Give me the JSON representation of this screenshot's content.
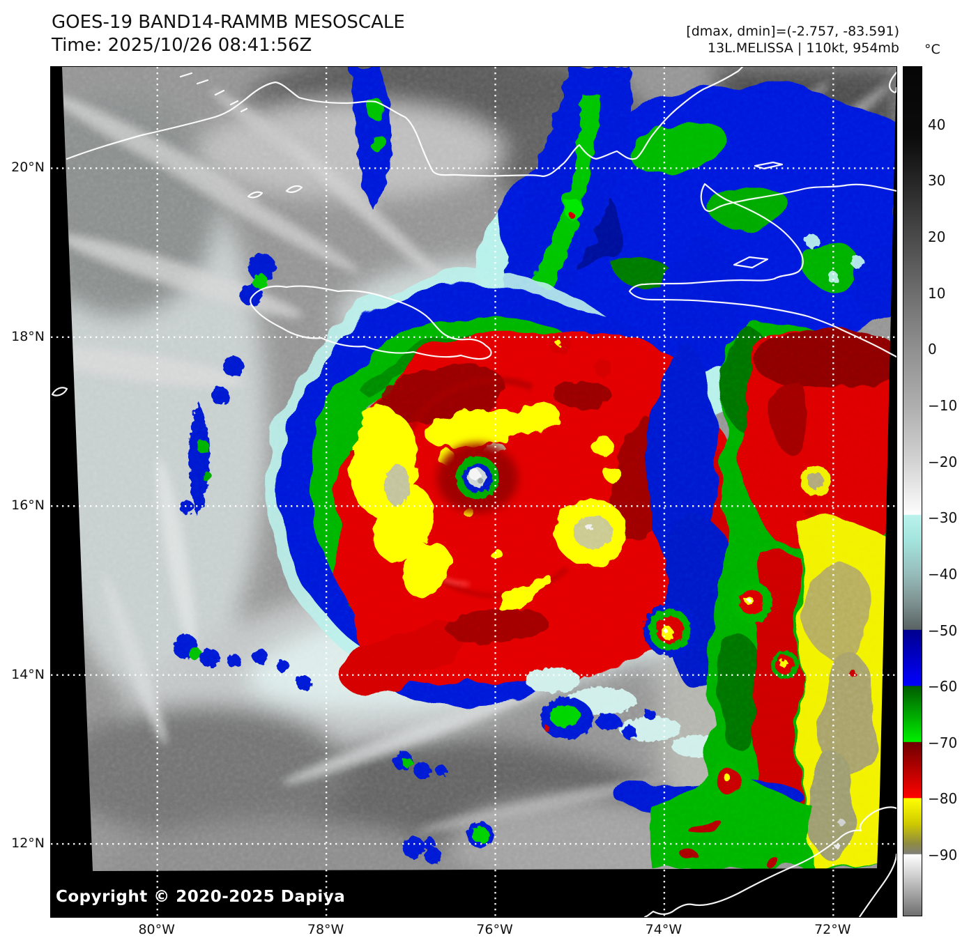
{
  "header": {
    "title_line1": "GOES-19 BAND14-RAMMB MESOSCALE",
    "title_line2": "Time: 2025/10/26 08:41:56Z",
    "info_line1": "[dmax, dmin]=(-2.757, -83.591)",
    "info_line2": "13L.MELISSA | 110kt, 954mb"
  },
  "colorbar": {
    "unit_label": "°C",
    "ticks": [
      {
        "label": "40",
        "t": 40
      },
      {
        "label": "30",
        "t": 30
      },
      {
        "label": "20",
        "t": 20
      },
      {
        "label": "10",
        "t": 10
      },
      {
        "label": "0",
        "t": 0
      },
      {
        "label": "−10",
        "t": -10
      },
      {
        "label": "−20",
        "t": -20
      },
      {
        "label": "−30",
        "t": -30
      },
      {
        "label": "−40",
        "t": -40
      },
      {
        "label": "−50",
        "t": -50
      },
      {
        "label": "−60",
        "t": -60
      },
      {
        "label": "−70",
        "t": -70
      },
      {
        "label": "−80",
        "t": -80
      },
      {
        "label": "−90",
        "t": -90
      }
    ],
    "stops": [
      {
        "t": 50.4,
        "color": "#060606"
      },
      {
        "t": 38,
        "color": "#0b0b0b"
      },
      {
        "t": 30,
        "color": "#262626"
      },
      {
        "t": 20,
        "color": "#4a4a4a"
      },
      {
        "t": 10,
        "color": "#6e6e6e"
      },
      {
        "t": 0,
        "color": "#909090"
      },
      {
        "t": -10,
        "color": "#aeaeae"
      },
      {
        "t": -20,
        "color": "#d3d3d3"
      },
      {
        "t": -29.4,
        "color": "#fdfdfd"
      },
      {
        "t": -29.5,
        "color": "#baf2ec"
      },
      {
        "t": -34,
        "color": "#a4e4de"
      },
      {
        "t": -40,
        "color": "#96bcba"
      },
      {
        "t": -45,
        "color": "#7e9291"
      },
      {
        "t": -49.9,
        "color": "#596263"
      },
      {
        "t": -50,
        "color": "#00008f"
      },
      {
        "t": -59.9,
        "color": "#0101fe"
      },
      {
        "t": -60,
        "color": "#005c00"
      },
      {
        "t": -69.9,
        "color": "#00ef00"
      },
      {
        "t": -70,
        "color": "#6f0000"
      },
      {
        "t": -79.9,
        "color": "#fe0300"
      },
      {
        "t": -80,
        "color": "#ffff00"
      },
      {
        "t": -84.5,
        "color": "#cfca00"
      },
      {
        "t": -88,
        "color": "#8f8c40"
      },
      {
        "t": -89.9,
        "color": "#7f7f79"
      },
      {
        "t": -90,
        "color": "#ffffff"
      },
      {
        "t": -95,
        "color": "#bfbfbf"
      },
      {
        "t": -100.9,
        "color": "#6f6f6f"
      }
    ]
  },
  "axes": {
    "lat_ticks": [
      {
        "label": "20°N",
        "deg": 20
      },
      {
        "label": "18°N",
        "deg": 18
      },
      {
        "label": "16°N",
        "deg": 16
      },
      {
        "label": "14°N",
        "deg": 14
      },
      {
        "label": "12°N",
        "deg": 12
      }
    ],
    "lon_ticks": [
      {
        "label": "80°W",
        "deg": 80
      },
      {
        "label": "78°W",
        "deg": 78
      },
      {
        "label": "76°W",
        "deg": 76
      },
      {
        "label": "74°W",
        "deg": 74
      },
      {
        "label": "72°W",
        "deg": 72
      }
    ]
  },
  "footer": {
    "copyright": "Copyright © 2020-2025 Dapiya"
  },
  "palette": {
    "ir_gray": "#949494",
    "ir_cyan": "#b6f0ea",
    "ir_blue": "#0016d8",
    "ir_navy": "#00008f",
    "ir_green": "#00b400",
    "ir_red": "#e20000",
    "ir_dark_red": "#8f0000",
    "ir_yellow": "#ffff00",
    "coastline": "#ffffff",
    "gridline": "#ffffff",
    "background": "#000000"
  }
}
